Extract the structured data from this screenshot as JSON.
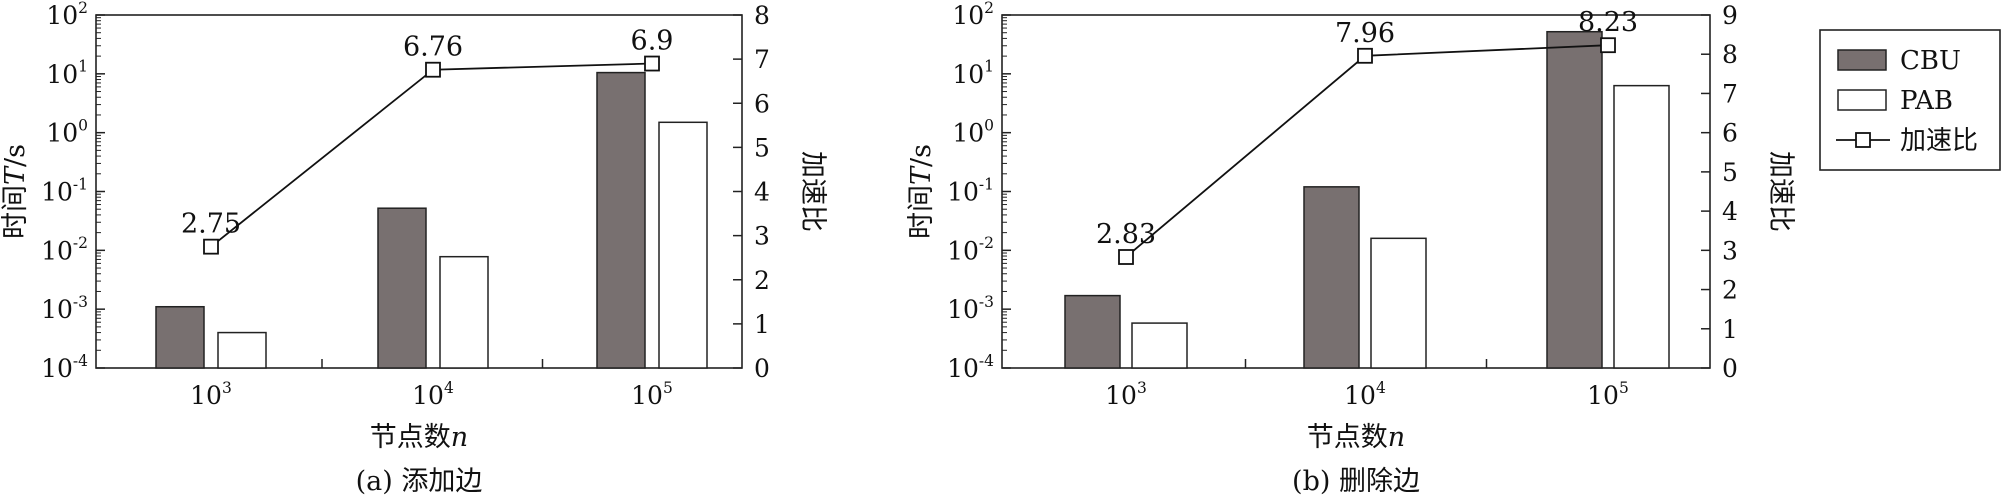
{
  "legend": {
    "items": [
      {
        "label": "CBU",
        "style": "bar",
        "color": "#787070"
      },
      {
        "label": "PAB",
        "style": "bar",
        "color": "#ffffff"
      },
      {
        "label": "加速比",
        "style": "line-square",
        "color": "#111111"
      }
    ]
  },
  "chart_data": [
    {
      "type": "bar",
      "caption": "(a) 添加边",
      "xlabel": "节点数",
      "xlabel_var": "n",
      "ylabel": "时间",
      "ylabel_var": "T",
      "ylabel_unit": "/s",
      "y2label": "加速比",
      "categories": [
        {
          "base": "10",
          "exp": "3"
        },
        {
          "base": "10",
          "exp": "4"
        },
        {
          "base": "10",
          "exp": "5"
        }
      ],
      "y_scale": "log",
      "ylim": [
        0.0001,
        100
      ],
      "y_ticks": [
        {
          "value": 0.0001,
          "base": "10",
          "exp": "-4"
        },
        {
          "value": 0.001,
          "base": "10",
          "exp": "-3"
        },
        {
          "value": 0.01,
          "base": "10",
          "exp": "-2"
        },
        {
          "value": 0.1,
          "base": "10",
          "exp": "-1"
        },
        {
          "value": 1,
          "base": "10",
          "exp": "0"
        },
        {
          "value": 10,
          "base": "10",
          "exp": "1"
        },
        {
          "value": 100,
          "base": "10",
          "exp": "2"
        }
      ],
      "y2lim": [
        0,
        8
      ],
      "y2_ticks": [
        "0",
        "1",
        "2",
        "3",
        "4",
        "5",
        "6",
        "7",
        "8"
      ],
      "series": [
        {
          "name": "CBU",
          "kind": "bar",
          "color": "#787070",
          "values": [
            0.0011,
            0.052,
            10.5
          ]
        },
        {
          "name": "PAB",
          "kind": "bar",
          "color": "#ffffff",
          "values": [
            0.0004,
            0.0078,
            1.5
          ]
        }
      ],
      "speedup": {
        "name": "加速比",
        "kind": "line",
        "values": [
          2.75,
          6.76,
          6.9
        ],
        "labels": [
          "2.75",
          "6.76",
          "6.9"
        ]
      }
    },
    {
      "type": "bar",
      "caption": "(b) 删除边",
      "xlabel": "节点数",
      "xlabel_var": "n",
      "ylabel": "时间",
      "ylabel_var": "T",
      "ylabel_unit": "/s",
      "y2label": "加速比",
      "categories": [
        {
          "base": "10",
          "exp": "3"
        },
        {
          "base": "10",
          "exp": "4"
        },
        {
          "base": "10",
          "exp": "5"
        }
      ],
      "y_scale": "log",
      "ylim": [
        0.0001,
        100
      ],
      "y_ticks": [
        {
          "value": 0.0001,
          "base": "10",
          "exp": "-4"
        },
        {
          "value": 0.001,
          "base": "10",
          "exp": "-3"
        },
        {
          "value": 0.01,
          "base": "10",
          "exp": "-2"
        },
        {
          "value": 0.1,
          "base": "10",
          "exp": "-1"
        },
        {
          "value": 1,
          "base": "10",
          "exp": "0"
        },
        {
          "value": 10,
          "base": "10",
          "exp": "1"
        },
        {
          "value": 100,
          "base": "10",
          "exp": "2"
        }
      ],
      "y2lim": [
        0,
        9
      ],
      "y2_ticks": [
        "0",
        "1",
        "2",
        "3",
        "4",
        "5",
        "6",
        "7",
        "8",
        "9"
      ],
      "series": [
        {
          "name": "CBU",
          "kind": "bar",
          "color": "#787070",
          "values": [
            0.0017,
            0.12,
            52
          ]
        },
        {
          "name": "PAB",
          "kind": "bar",
          "color": "#ffffff",
          "values": [
            0.00058,
            0.016,
            6.3
          ]
        }
      ],
      "speedup": {
        "name": "加速比",
        "kind": "line",
        "values": [
          2.83,
          7.96,
          8.23
        ],
        "labels": [
          "2.83",
          "7.96",
          "8.23"
        ]
      }
    }
  ]
}
